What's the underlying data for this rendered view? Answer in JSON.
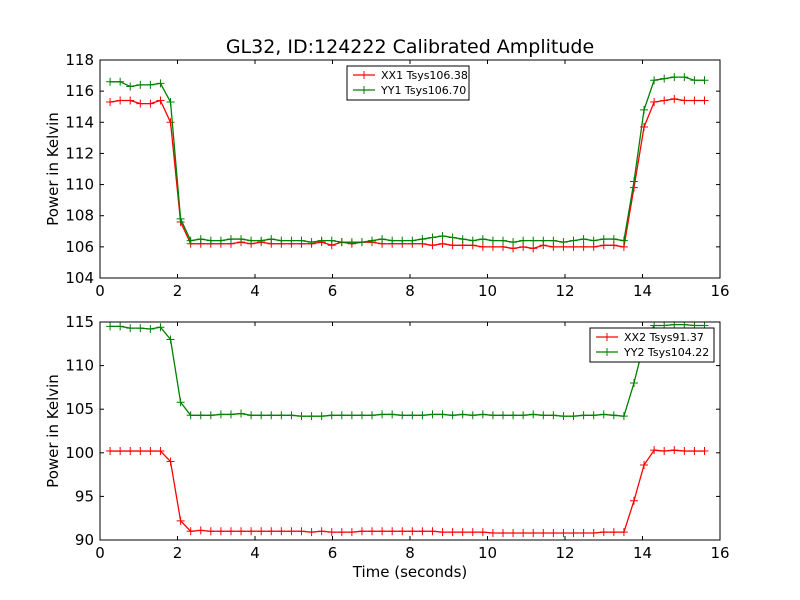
{
  "chart_data": [
    {
      "type": "line",
      "title": "GL32, ID:124222 Calibrated Amplitude",
      "xlabel": "",
      "ylabel": "Power in Kelvin",
      "xlim": [
        0,
        16
      ],
      "ylim": [
        104,
        118
      ],
      "xticks": [
        "0",
        "2",
        "4",
        "6",
        "8",
        "10",
        "12",
        "14",
        "16"
      ],
      "yticks": [
        "104",
        "106",
        "108",
        "110",
        "112",
        "114",
        "116",
        "118"
      ],
      "grid": false,
      "legend": "upper-center",
      "x": [
        0.26,
        0.52,
        0.78,
        1.04,
        1.3,
        1.56,
        1.82,
        2.08,
        2.34,
        2.6,
        2.86,
        3.12,
        3.38,
        3.64,
        3.9,
        4.16,
        4.42,
        4.68,
        4.94,
        5.2,
        5.46,
        5.72,
        5.98,
        6.24,
        6.5,
        6.76,
        7.02,
        7.28,
        7.54,
        7.8,
        8.06,
        8.32,
        8.58,
        8.84,
        9.1,
        9.36,
        9.62,
        9.88,
        10.14,
        10.4,
        10.66,
        10.92,
        11.18,
        11.44,
        11.7,
        11.96,
        12.22,
        12.48,
        12.74,
        13.0,
        13.26,
        13.52,
        13.78,
        14.04,
        14.3,
        14.56,
        14.82,
        15.08,
        15.34,
        15.6
      ],
      "series": [
        {
          "name": "XX1 Tsys106.38",
          "color": "#ff0000",
          "values": [
            115.3,
            115.4,
            115.4,
            115.2,
            115.2,
            115.4,
            114.0,
            107.6,
            106.2,
            106.2,
            106.2,
            106.2,
            106.2,
            106.3,
            106.2,
            106.3,
            106.2,
            106.2,
            106.2,
            106.2,
            106.2,
            106.3,
            106.1,
            106.3,
            106.2,
            106.3,
            106.3,
            106.2,
            106.2,
            106.2,
            106.2,
            106.2,
            106.1,
            106.2,
            106.1,
            106.1,
            106.1,
            106.0,
            106.0,
            106.0,
            105.9,
            106.0,
            105.9,
            106.1,
            106.0,
            106.0,
            106.0,
            106.0,
            106.0,
            106.1,
            106.1,
            106.0,
            109.8,
            113.7,
            115.3,
            115.4,
            115.5,
            115.4,
            115.4,
            115.4
          ]
        },
        {
          "name": "YY1 Tsys106.70",
          "color": "#008000",
          "values": [
            116.6,
            116.6,
            116.3,
            116.4,
            116.4,
            116.5,
            115.3,
            107.8,
            106.4,
            106.5,
            106.4,
            106.4,
            106.5,
            106.5,
            106.4,
            106.4,
            106.5,
            106.4,
            106.4,
            106.4,
            106.3,
            106.4,
            106.4,
            106.3,
            106.3,
            106.3,
            106.4,
            106.5,
            106.4,
            106.4,
            106.4,
            106.5,
            106.6,
            106.7,
            106.6,
            106.5,
            106.4,
            106.5,
            106.4,
            106.4,
            106.3,
            106.4,
            106.4,
            106.4,
            106.4,
            106.3,
            106.4,
            106.5,
            106.4,
            106.5,
            106.5,
            106.4,
            110.2,
            114.8,
            116.7,
            116.8,
            116.9,
            116.9,
            116.7,
            116.7
          ]
        }
      ]
    },
    {
      "type": "line",
      "title": "",
      "xlabel": "Time (seconds)",
      "ylabel": "Power in Kelvin",
      "xlim": [
        0,
        16
      ],
      "ylim": [
        90,
        115
      ],
      "xticks": [
        "0",
        "2",
        "4",
        "6",
        "8",
        "10",
        "12",
        "14",
        "16"
      ],
      "yticks": [
        "90",
        "95",
        "100",
        "105",
        "110",
        "115"
      ],
      "grid": false,
      "legend": "upper-right",
      "x": [
        0.26,
        0.52,
        0.78,
        1.04,
        1.3,
        1.56,
        1.82,
        2.08,
        2.34,
        2.6,
        2.86,
        3.12,
        3.38,
        3.64,
        3.9,
        4.16,
        4.42,
        4.68,
        4.94,
        5.2,
        5.46,
        5.72,
        5.98,
        6.24,
        6.5,
        6.76,
        7.02,
        7.28,
        7.54,
        7.8,
        8.06,
        8.32,
        8.58,
        8.84,
        9.1,
        9.36,
        9.62,
        9.88,
        10.14,
        10.4,
        10.66,
        10.92,
        11.18,
        11.44,
        11.7,
        11.96,
        12.22,
        12.48,
        12.74,
        13.0,
        13.26,
        13.52,
        13.78,
        14.04,
        14.3,
        14.56,
        14.82,
        15.08,
        15.34,
        15.6
      ],
      "series": [
        {
          "name": "XX2 Tsys91.37",
          "color": "#ff0000",
          "values": [
            100.2,
            100.2,
            100.2,
            100.2,
            100.2,
            100.2,
            99.0,
            92.2,
            91.0,
            91.1,
            91.0,
            91.0,
            91.0,
            91.0,
            91.0,
            91.0,
            91.0,
            91.0,
            91.0,
            91.0,
            90.9,
            91.0,
            90.9,
            90.9,
            90.9,
            91.0,
            91.0,
            91.0,
            91.0,
            91.0,
            91.0,
            91.0,
            91.0,
            90.9,
            90.9,
            90.9,
            90.9,
            90.9,
            90.8,
            90.8,
            90.8,
            90.8,
            90.8,
            90.8,
            90.8,
            90.8,
            90.8,
            90.8,
            90.8,
            90.9,
            90.9,
            90.9,
            94.5,
            98.6,
            100.3,
            100.2,
            100.3,
            100.2,
            100.2,
            100.2
          ]
        },
        {
          "name": "YY2 Tsys104.22",
          "color": "#008000",
          "values": [
            114.5,
            114.5,
            114.3,
            114.3,
            114.2,
            114.4,
            113.0,
            105.8,
            104.3,
            104.3,
            104.3,
            104.4,
            104.4,
            104.5,
            104.3,
            104.3,
            104.3,
            104.3,
            104.3,
            104.2,
            104.2,
            104.2,
            104.3,
            104.3,
            104.3,
            104.3,
            104.3,
            104.4,
            104.4,
            104.3,
            104.3,
            104.3,
            104.4,
            104.4,
            104.3,
            104.4,
            104.3,
            104.4,
            104.3,
            104.3,
            104.3,
            104.3,
            104.4,
            104.3,
            104.3,
            104.2,
            104.2,
            104.3,
            104.3,
            104.4,
            104.3,
            104.2,
            108.0,
            112.6,
            114.6,
            114.6,
            114.7,
            114.7,
            114.6,
            114.6
          ]
        }
      ]
    }
  ]
}
